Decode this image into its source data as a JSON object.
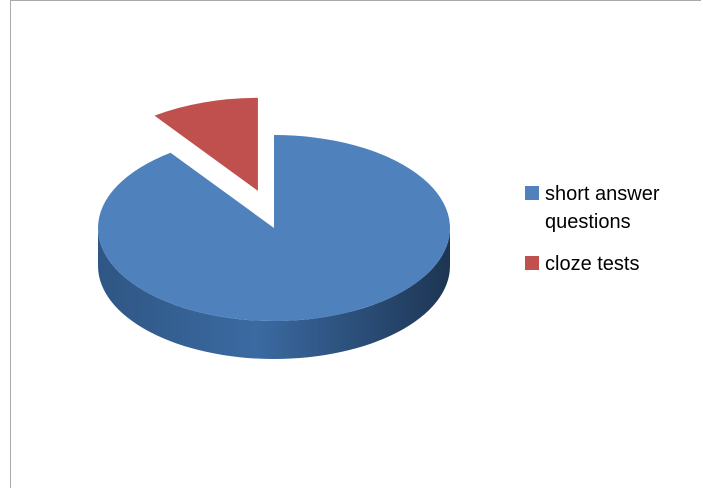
{
  "chart_data": {
    "type": "pie",
    "style": "3d-exploded",
    "categories": [
      "short answer questions",
      "cloze tests"
    ],
    "values": [
      90,
      10
    ],
    "colors": [
      "#4f81bd",
      "#c0504d"
    ],
    "legend_placement": "right",
    "title": ""
  }
}
